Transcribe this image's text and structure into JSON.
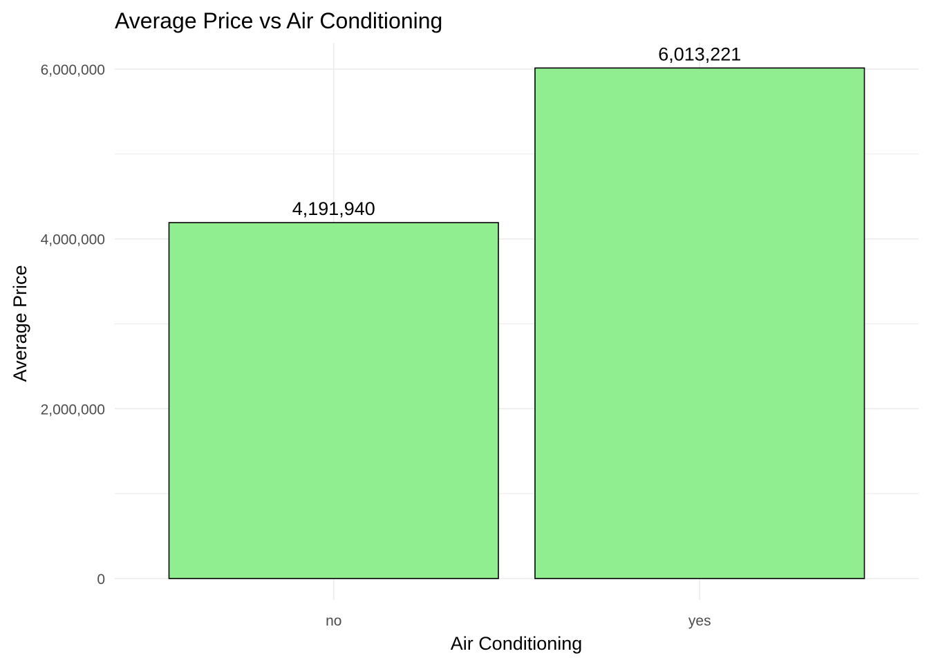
{
  "chart_data": {
    "type": "bar",
    "title": "Average Price vs Air Conditioning",
    "xlabel": "Air Conditioning",
    "ylabel": "Average Price",
    "categories": [
      "no",
      "yes"
    ],
    "values": [
      4191940,
      6013221
    ],
    "data_labels": [
      "4,191,940",
      "6,013,221"
    ],
    "ylim": [
      0,
      6313882
    ],
    "yticks": [
      0,
      2000000,
      4000000,
      6000000
    ],
    "ytick_labels": [
      "0",
      "2,000,000",
      "4,000,000",
      "6,000,000"
    ],
    "grid": true,
    "legend": "none",
    "colors": {
      "bar_fill": "#90EE90",
      "bar_stroke": "#000000",
      "grid": "#EBEBEB",
      "tick_text": "#4D4D4D"
    }
  }
}
